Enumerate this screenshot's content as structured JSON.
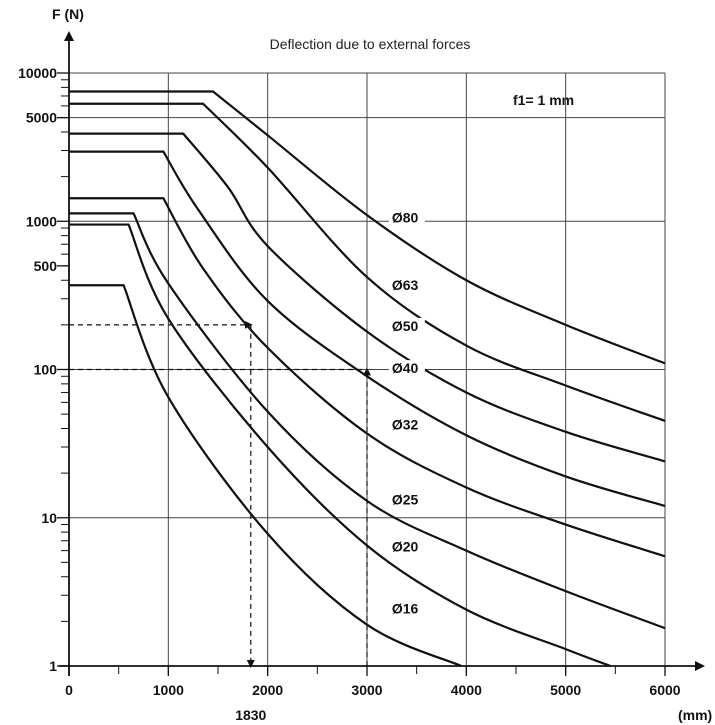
{
  "chart_data": {
    "type": "line",
    "title": "Deflection due to external forces",
    "ylabel": "F (N)",
    "xlabel": "(mm)",
    "annotation": "f1= 1 mm",
    "x_scale": "linear",
    "y_scale": "log",
    "xlim": [
      0,
      6000
    ],
    "ylim": [
      1,
      10000
    ],
    "x_ticks": [
      0,
      1000,
      2000,
      3000,
      4000,
      5000,
      6000
    ],
    "x_tick_labels": [
      "0",
      "1000",
      "2000",
      "3000",
      "4000",
      "5000",
      "6000"
    ],
    "y_ticks": [
      1,
      10,
      100,
      500,
      1000,
      5000,
      10000
    ],
    "y_tick_labels": [
      "1",
      "10",
      "100",
      "500",
      "1000",
      "5000",
      "10000"
    ],
    "grid": true,
    "series": [
      {
        "name": "Ø80",
        "label_at": [
          3250,
          1000
        ],
        "points": [
          [
            0,
            7500
          ],
          [
            1450,
            7500
          ],
          [
            2000,
            3800
          ],
          [
            3000,
            1100
          ],
          [
            4000,
            400
          ],
          [
            5000,
            200
          ],
          [
            6000,
            110
          ]
        ]
      },
      {
        "name": "Ø63",
        "label_at": [
          3250,
          350
        ],
        "points": [
          [
            0,
            6200
          ],
          [
            1350,
            6200
          ],
          [
            2000,
            2300
          ],
          [
            3000,
            420
          ],
          [
            4000,
            145
          ],
          [
            5000,
            78
          ],
          [
            6000,
            45
          ]
        ]
      },
      {
        "name": "Ø50",
        "label_at": [
          3250,
          185
        ],
        "points": [
          [
            0,
            3900
          ],
          [
            1150,
            3900
          ],
          [
            1600,
            1700
          ],
          [
            2000,
            680
          ],
          [
            3000,
            180
          ],
          [
            4000,
            70
          ],
          [
            5000,
            38
          ],
          [
            6000,
            24
          ]
        ]
      },
      {
        "name": "Ø40",
        "label_at": [
          3250,
          96
        ],
        "points": [
          [
            0,
            2950
          ],
          [
            950,
            2950
          ],
          [
            1300,
            1200
          ],
          [
            2000,
            290
          ],
          [
            3000,
            90
          ],
          [
            4000,
            36
          ],
          [
            5000,
            19
          ],
          [
            6000,
            12
          ]
        ]
      },
      {
        "name": "Ø32",
        "label_at": [
          3250,
          40
        ],
        "points": [
          [
            0,
            1430
          ],
          [
            950,
            1430
          ],
          [
            1350,
            480
          ],
          [
            2000,
            140
          ],
          [
            3000,
            37
          ],
          [
            4000,
            16
          ],
          [
            5000,
            9
          ],
          [
            6000,
            5.5
          ]
        ]
      },
      {
        "name": "Ø25",
        "label_at": [
          3250,
          12.5
        ],
        "points": [
          [
            0,
            1130
          ],
          [
            650,
            1130
          ],
          [
            1000,
            380
          ],
          [
            2000,
            52
          ],
          [
            3000,
            13
          ],
          [
            4000,
            6
          ],
          [
            5000,
            3.2
          ],
          [
            6000,
            1.8
          ]
        ]
      },
      {
        "name": "Ø20",
        "label_at": [
          3250,
          6
        ],
        "points": [
          [
            0,
            950
          ],
          [
            600,
            950
          ],
          [
            1000,
            220
          ],
          [
            2000,
            30
          ],
          [
            3000,
            6.5
          ],
          [
            4000,
            2.4
          ],
          [
            5000,
            1.3
          ],
          [
            5450,
            1
          ]
        ]
      },
      {
        "name": "Ø16",
        "label_at": [
          3250,
          2.3
        ],
        "points": [
          [
            0,
            370
          ],
          [
            550,
            370
          ],
          [
            1000,
            65
          ],
          [
            2000,
            7.8
          ],
          [
            3000,
            1.9
          ],
          [
            3950,
            1
          ]
        ]
      }
    ],
    "reference_lines": [
      {
        "name": "1830",
        "x": 1830,
        "y": 200,
        "axis_label": "1830"
      },
      {
        "name": "3000",
        "x": 3000,
        "y": 100
      }
    ]
  }
}
